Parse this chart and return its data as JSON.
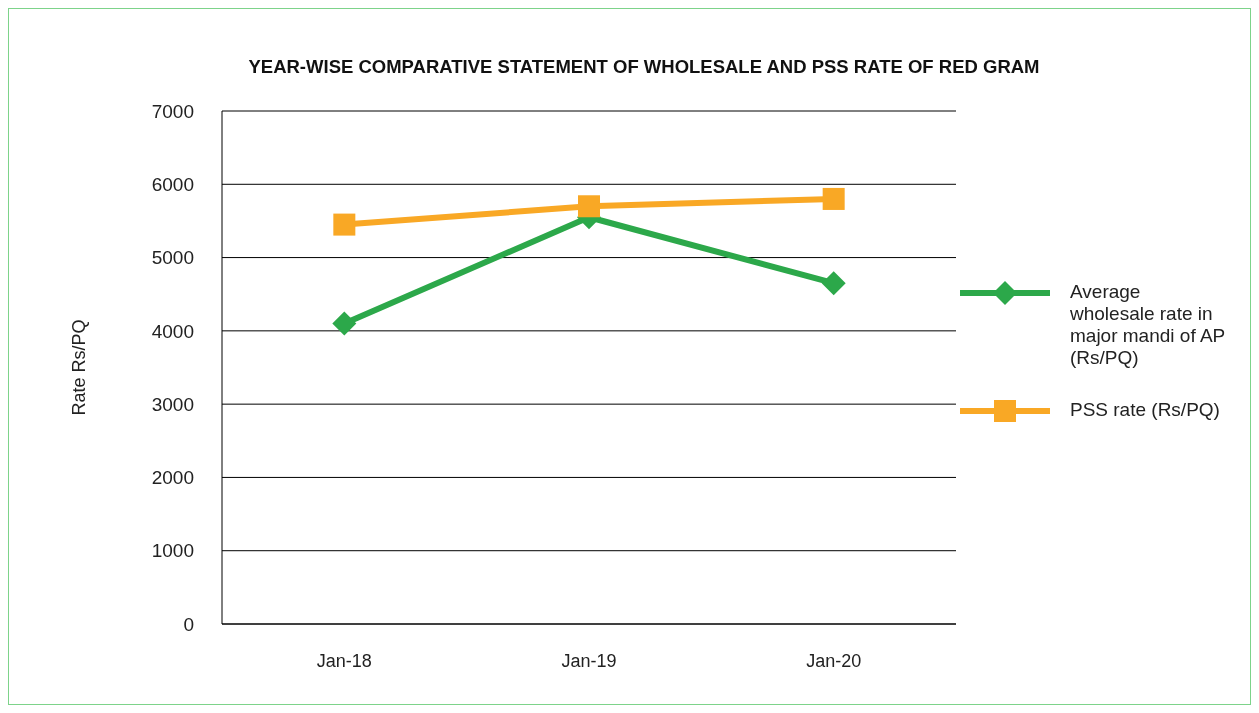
{
  "chart_data": {
    "type": "line",
    "title": "YEAR-WISE COMPARATIVE STATEMENT OF WHOLESALE AND PSS RATE OF RED GRAM",
    "ylabel": "Rate Rs/PQ",
    "categories": [
      "Jan-18",
      "Jan-19",
      "Jan-20"
    ],
    "series": [
      {
        "name": "Average wholesale rate in major mandi of AP (Rs/PQ)",
        "color": "#2ca84a",
        "marker": "diamond",
        "values": [
          4100,
          5550,
          4650
        ]
      },
      {
        "name": "PSS rate (Rs/PQ)",
        "color": "#f9a825",
        "marker": "square",
        "values": [
          5450,
          5700,
          5800
        ]
      }
    ],
    "ylim": [
      0,
      7000
    ],
    "yticks": [
      0,
      1000,
      2000,
      3000,
      4000,
      5000,
      6000,
      7000
    ],
    "grid": "y",
    "legend": "right",
    "line_style": "solid"
  }
}
